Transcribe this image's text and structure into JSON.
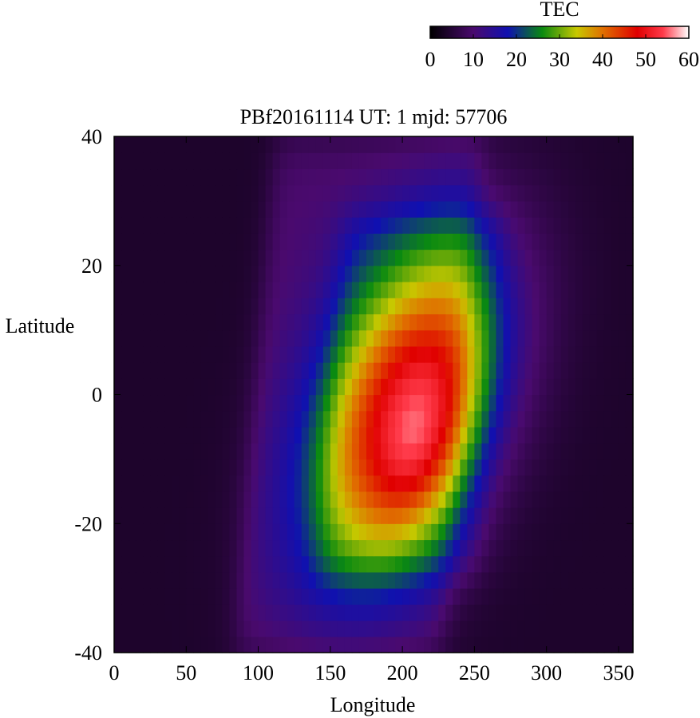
{
  "chart_data": {
    "type": "heatmap",
    "title": "PBf20161114  UT: 1  mjd: 57706",
    "xlabel": "Longitude",
    "ylabel": "Latitude",
    "xlim": [
      0,
      360
    ],
    "ylim": [
      -40,
      40
    ],
    "x_ticks": [
      "0",
      "50",
      "100",
      "150",
      "200",
      "250",
      "300",
      "350"
    ],
    "y_ticks": [
      "40",
      "20",
      "0",
      "-20",
      "-40"
    ],
    "colorbar": {
      "label": "TEC",
      "range": [
        0,
        60
      ],
      "ticks": [
        "0",
        "10",
        "20",
        "30",
        "40",
        "50",
        "60"
      ],
      "stops": [
        {
          "v": 0,
          "color": "#000000"
        },
        {
          "v": 10,
          "color": "#4a0a6e"
        },
        {
          "v": 18,
          "color": "#1010b0"
        },
        {
          "v": 26,
          "color": "#0a8a10"
        },
        {
          "v": 34,
          "color": "#c8c800"
        },
        {
          "v": 40,
          "color": "#e07000"
        },
        {
          "v": 48,
          "color": "#e00000"
        },
        {
          "v": 54,
          "color": "#ff3a4a"
        },
        {
          "v": 60,
          "color": "#ffffff"
        }
      ]
    },
    "grid": false,
    "field": {
      "background_tec": 4,
      "bands": [
        {
          "lon_center": 170,
          "lon_halfwidth": 72,
          "edge": 14,
          "lat_center": 0,
          "lat_halfwidth": 40,
          "lat_edge": 8,
          "tilt": 0.35,
          "tec": 6
        },
        {
          "lon_center": 205,
          "lon_halfwidth": 55,
          "edge": 18,
          "lat_center": 0,
          "lat_halfwidth": 28,
          "lat_edge": 6,
          "tilt": 0.3,
          "tec": 6
        }
      ],
      "peaks": [
        {
          "lon": 205,
          "lat": -2,
          "sig_lon": 42,
          "sig_lat": 17,
          "tilt": 1.15,
          "tec": 36
        },
        {
          "lon": 212,
          "lat": -10,
          "sig_lon": 18,
          "sig_lat": 8,
          "tilt": 1.0,
          "tec": 6
        }
      ]
    }
  }
}
